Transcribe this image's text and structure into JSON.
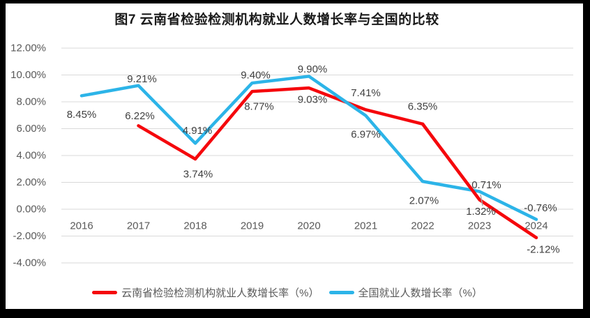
{
  "frame": {
    "background_color": "#000000",
    "chart_background_color": "#FFFFFF"
  },
  "chart_data": {
    "type": "line",
    "title": "图7  云南省检验检测机构就业人数增长率与全国的比较",
    "categories": [
      "2016",
      "2017",
      "2018",
      "2019",
      "2020",
      "2021",
      "2022",
      "2023",
      "2024"
    ],
    "series": [
      {
        "name": "云南省检验检测机构就业人数增长率（%）",
        "color": "#F5070C",
        "values": [
          null,
          6.22,
          3.74,
          8.77,
          9.03,
          7.41,
          6.35,
          0.71,
          -2.12
        ],
        "labels": [
          "",
          "6.22%",
          "3.74%",
          "8.77%",
          "9.03%",
          "7.41%",
          "6.35%",
          "0.71%",
          "-2.12%"
        ],
        "label_offsets": [
          null,
          [
            2,
            -14
          ],
          [
            4,
            22
          ],
          [
            10,
            22
          ],
          [
            5,
            17
          ],
          [
            0,
            -24
          ],
          [
            0,
            -25
          ],
          [
            10,
            -21
          ],
          [
            10,
            17
          ]
        ]
      },
      {
        "name": "全国就业人数增长率（%）",
        "color": "#2CB4E8",
        "values": [
          8.45,
          9.21,
          4.91,
          9.4,
          9.9,
          6.97,
          2.07,
          1.32,
          -0.76
        ],
        "labels": [
          "8.45%",
          "9.21%",
          "4.91%",
          "9.40%",
          "9.90%",
          "6.97%",
          "2.07%",
          "1.32%",
          "-0.76%"
        ],
        "label_offsets": [
          [
            0,
            27
          ],
          [
            5,
            -9
          ],
          [
            3,
            -18
          ],
          [
            5,
            -11
          ],
          [
            5,
            -10
          ],
          [
            0,
            27
          ],
          [
            2,
            28
          ],
          [
            2,
            29
          ],
          [
            6,
            -16
          ]
        ]
      }
    ],
    "y_tick_labels": [
      "12.00%",
      "10.00%",
      "8.00%",
      "6.00%",
      "4.00%",
      "2.00%",
      "0.00%",
      "-2.00%",
      "-4.00%"
    ],
    "ylim": [
      -4,
      12
    ],
    "ytick_step": 2,
    "grid": true,
    "legend_position": "bottom",
    "colors": {
      "gridline": "#D9D9D9",
      "axis_text": "#595959",
      "data_label_text": "#3F3F3F",
      "title_text": "#1A1A1A",
      "leader_line": "#A6A6A6"
    },
    "annotations": [
      {
        "name": "label-leader-line",
        "from": [
          684,
          290
        ],
        "to": [
          681,
          274
        ]
      }
    ]
  }
}
